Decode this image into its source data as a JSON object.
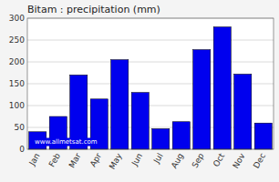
{
  "chart_data": {
    "type": "bar",
    "title": "Bitam : precipitation (mm)",
    "categories": [
      "Jan",
      "Feb",
      "Mar",
      "Apr",
      "May",
      "Jun",
      "Jul",
      "Aug",
      "Sep",
      "Oct",
      "Nov",
      "Dec"
    ],
    "values": [
      40,
      75,
      170,
      115,
      205,
      130,
      47,
      63,
      228,
      280,
      172,
      60
    ],
    "color": "#0000ee",
    "ylim": [
      0,
      300
    ],
    "yticks": [
      0,
      50,
      100,
      150,
      200,
      250,
      300
    ],
    "grid": true,
    "annotation": "www.allmetsat.com"
  }
}
